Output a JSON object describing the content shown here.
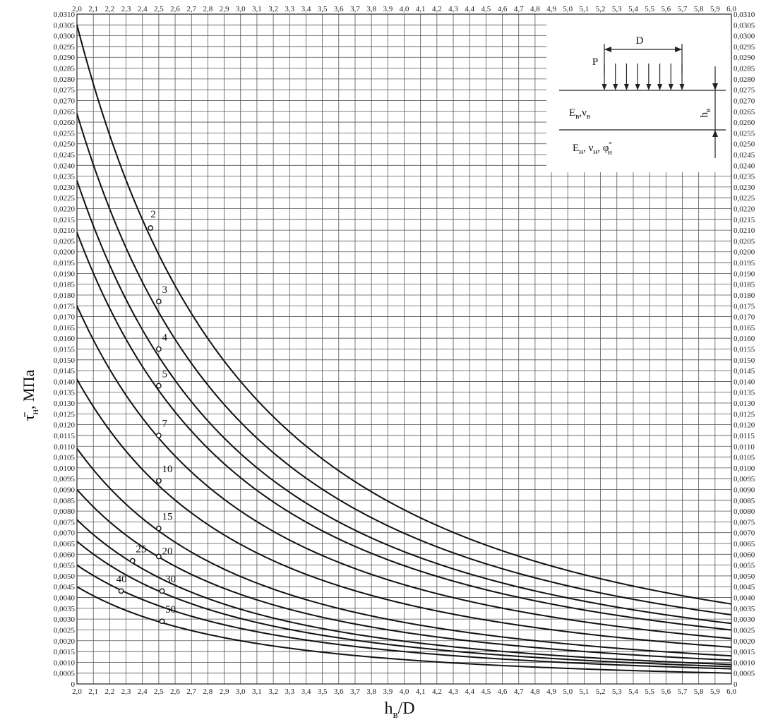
{
  "chart_data": {
    "type": "line",
    "title": "",
    "x_ticks": [
      "2,0",
      "2,1",
      "2,2",
      "2,3",
      "2,4",
      "2,5",
      "2,6",
      "2,7",
      "2,8",
      "2,9",
      "3,0",
      "3,1",
      "3,2",
      "3,3",
      "3,4",
      "3,5",
      "3,6",
      "3,7",
      "3,8",
      "3,9",
      "4,0",
      "4,1",
      "4,2",
      "4,3",
      "4,4",
      "4,5",
      "4,6",
      "4,7",
      "4,8",
      "4,9",
      "5,0",
      "5,1",
      "5,2",
      "5,3",
      "5,4",
      "5,5",
      "5,6",
      "5,7",
      "5,8",
      "5,9",
      "6,0"
    ],
    "y_ticks": [
      "0",
      "0,0005",
      "0,0010",
      "0,0015",
      "0,0020",
      "0,0025",
      "0,0030",
      "0,0035",
      "0,0040",
      "0,0045",
      "0,0050",
      "0,0055",
      "0,0060",
      "0,0065",
      "0,0070",
      "0,0075",
      "0,0080",
      "0,0085",
      "0,0090",
      "0,0095",
      "0,0100",
      "0,0105",
      "0,0110",
      "0,0115",
      "0,0120",
      "0,0125",
      "0,0130",
      "0,0135",
      "0,0140",
      "0,0145",
      "0,0150",
      "0,0155",
      "0,0160",
      "0,0165",
      "0,0170",
      "0,0175",
      "0,0180",
      "0,0185",
      "0,0190",
      "0,0195",
      "0,0200",
      "0,0205",
      "0,0210",
      "0,0215",
      "0,0220",
      "0,0225",
      "0,0230",
      "0,0235",
      "0,0240",
      "0,0245",
      "0,0250",
      "0,0255",
      "0,0260",
      "0,0265",
      "0,0270",
      "0,0275",
      "0,0280",
      "0,0285",
      "0,0290",
      "0,0295",
      "0,0300",
      "0,0305",
      "0,0310"
    ],
    "xlim": [
      2.0,
      6.0
    ],
    "ylim": [
      0,
      0.031
    ],
    "grid": true,
    "xlabel_main": "h",
    "xlabel_sub": "в",
    "xlabel_tail": "/D",
    "ylabel_main": "τ̄",
    "ylabel_sub": "н",
    "ylabel_tail": ", МПа",
    "series": [
      {
        "name": "2",
        "start": 0.0305,
        "end": 0.0037,
        "marker": [
          2.45,
          0.0211
        ],
        "label_pos": [
          2.45,
          0.0216
        ]
      },
      {
        "name": "3",
        "start": 0.0264,
        "end": 0.0032,
        "marker": [
          2.5,
          0.0177
        ],
        "label_pos": [
          2.52,
          0.0181
        ]
      },
      {
        "name": "4",
        "start": 0.0233,
        "end": 0.0028,
        "marker": [
          2.5,
          0.0155
        ],
        "label_pos": [
          2.52,
          0.0159
        ]
      },
      {
        "name": "5",
        "start": 0.0209,
        "end": 0.0025,
        "marker": [
          2.5,
          0.0138
        ],
        "label_pos": [
          2.52,
          0.0142
        ]
      },
      {
        "name": "7",
        "start": 0.0175,
        "end": 0.0021,
        "marker": [
          2.5,
          0.0115
        ],
        "label_pos": [
          2.52,
          0.0119
        ]
      },
      {
        "name": "10",
        "start": 0.0141,
        "end": 0.0017,
        "marker": [
          2.5,
          0.0094
        ],
        "label_pos": [
          2.52,
          0.0098
        ]
      },
      {
        "name": "15",
        "start": 0.0109,
        "end": 0.0013,
        "marker": [
          2.5,
          0.0072
        ],
        "label_pos": [
          2.52,
          0.0076
        ]
      },
      {
        "name": "20",
        "start": 0.009,
        "end": 0.0011,
        "marker": [
          2.5,
          0.0059
        ],
        "label_pos": [
          2.52,
          0.006
        ]
      },
      {
        "name": "25",
        "start": 0.0076,
        "end": 0.0009,
        "marker": [
          2.34,
          0.0057
        ],
        "label_pos": [
          2.36,
          0.0061
        ]
      },
      {
        "name": "30",
        "start": 0.0066,
        "end": 0.0008,
        "marker": [
          2.52,
          0.0043
        ],
        "label_pos": [
          2.54,
          0.0047
        ]
      },
      {
        "name": "40",
        "start": 0.0055,
        "end": 0.0007,
        "marker": [
          2.27,
          0.0043
        ],
        "label_pos": [
          2.24,
          0.0047
        ]
      },
      {
        "name": "50",
        "start": 0.0045,
        "end": 0.0005,
        "marker": [
          2.52,
          0.0029
        ],
        "label_pos": [
          2.54,
          0.0033
        ]
      }
    ]
  },
  "inset": {
    "load_label": "P",
    "diameter_label": "D",
    "upper_layer_E": "E",
    "upper_layer_E_sub": "в",
    "upper_layer_sep": ",ν",
    "upper_layer_nu_sub": "в",
    "lower_layer_E": "E",
    "lower_layer_E_sub": "н",
    "lower_layer_nu": ", ν",
    "lower_layer_nu_sub": "н",
    "lower_layer_phi": ", φ",
    "lower_layer_phi_sup": "°",
    "lower_layer_phi_sub": "н",
    "thickness_label": "h",
    "thickness_sub": "в"
  }
}
